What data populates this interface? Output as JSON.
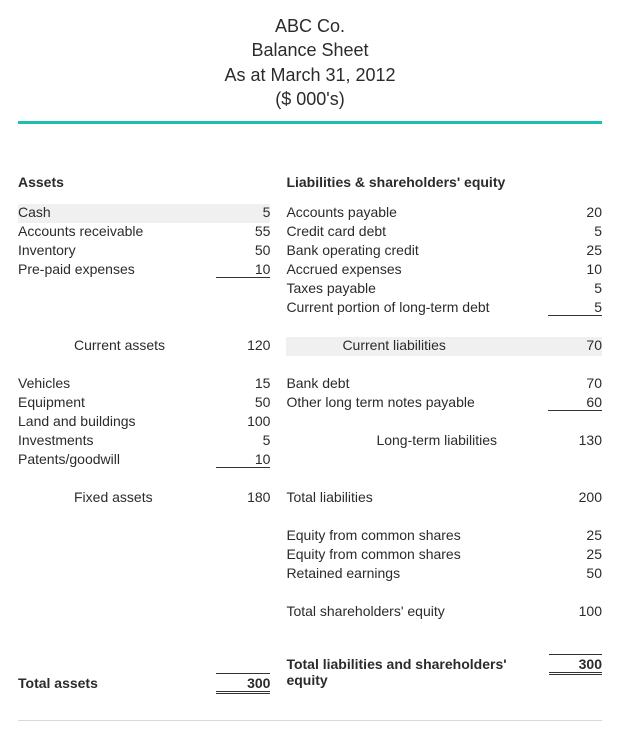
{
  "header": {
    "company": "ABC Co.",
    "title": "Balance Sheet",
    "date_line": "As at March 31, 2012",
    "units": "($ 000's)"
  },
  "colors": {
    "accent_rule": "#1bbfb3",
    "shade_bg": "#f0f0f0",
    "text": "#2b2b2b"
  },
  "assets": {
    "heading": "Assets",
    "current_items": [
      {
        "label": "Cash",
        "value": "5",
        "shade": true
      },
      {
        "label": "Accounts receivable",
        "value": "55"
      },
      {
        "label": "Inventory",
        "value": "50"
      },
      {
        "label": "Pre-paid expenses",
        "value": "10",
        "underline": true
      }
    ],
    "current_subtotal": {
      "label": "Current assets",
      "value": "120"
    },
    "fixed_items": [
      {
        "label": "Vehicles",
        "value": "15"
      },
      {
        "label": "Equipment",
        "value": "50"
      },
      {
        "label": "Land and buildings",
        "value": "100"
      },
      {
        "label": "Investments",
        "value": "5"
      },
      {
        "label": "Patents/goodwill",
        "value": "10",
        "underline": true
      }
    ],
    "fixed_subtotal": {
      "label": "Fixed assets",
      "value": "180"
    },
    "total": {
      "label": "Total assets",
      "value": "300"
    }
  },
  "liab": {
    "heading": "Liabilities & shareholders' equity",
    "current_items": [
      {
        "label": "Accounts payable",
        "value": "20"
      },
      {
        "label": "Credit card debt",
        "value": "5"
      },
      {
        "label": "Bank operating credit",
        "value": "25"
      },
      {
        "label": "Accrued expenses",
        "value": "10"
      },
      {
        "label": "Taxes payable",
        "value": "5"
      },
      {
        "label": "Current portion of long-term debt",
        "value": "5",
        "underline": true
      }
    ],
    "current_subtotal": {
      "label": "Current liabilities",
      "value": "70",
      "shade": true
    },
    "lt_items": [
      {
        "label": "Bank debt",
        "value": "70"
      },
      {
        "label": "Other long term notes payable",
        "value": "60",
        "underline": true
      }
    ],
    "lt_subtotal": {
      "label": "Long-term liabilities",
      "value": "130"
    },
    "total_liab": {
      "label": "Total liabilities",
      "value": "200"
    },
    "equity_items": [
      {
        "label": "Equity from common shares",
        "value": "25"
      },
      {
        "label": "Equity from common shares",
        "value": "25"
      },
      {
        "label": "Retained earnings",
        "value": "50"
      }
    ],
    "total_equity": {
      "label": "Total shareholders' equity",
      "value": "100"
    },
    "grand_total": {
      "label": "Total liabilities and shareholders' equity",
      "value": "300"
    }
  }
}
